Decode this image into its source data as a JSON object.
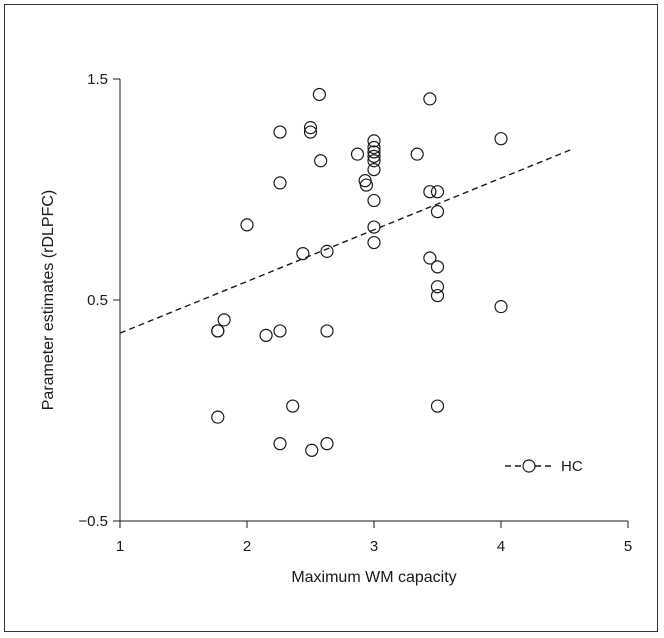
{
  "chart_data": {
    "type": "scatter",
    "title": "",
    "xlabel": "Maximum WM capacity",
    "ylabel": "Parameter estimates (rDLPFC)",
    "xlim": [
      1,
      5
    ],
    "ylim": [
      -0.5,
      1.5
    ],
    "xticks": [
      "1",
      "2",
      "3",
      "4",
      "5"
    ],
    "yticks": [
      "1.5",
      "0.5",
      "−0.5"
    ],
    "ytick_values": [
      1.5,
      0.5,
      -0.5
    ],
    "xtick_values": [
      1,
      2,
      3,
      4,
      5
    ],
    "grid": false,
    "legend": {
      "placement": "bottom-right",
      "entries": [
        "HC"
      ]
    },
    "series": [
      {
        "name": "HC",
        "marker": "open-circle",
        "x": [
          1.77,
          1.82,
          1.77,
          1.77,
          2.0,
          2.15,
          2.26,
          2.26,
          2.26,
          2.26,
          2.36,
          2.44,
          2.5,
          2.5,
          2.51,
          2.57,
          2.58,
          2.63,
          2.63,
          2.63,
          2.87,
          2.93,
          2.94,
          3.0,
          3.0,
          3.0,
          3.0,
          3.0,
          3.0,
          3.0,
          3.0,
          3.0,
          3.34,
          3.44,
          3.44,
          3.44,
          3.5,
          3.5,
          3.5,
          3.5,
          3.5,
          3.5,
          4.0,
          4.0
        ],
        "y": [
          0.36,
          0.41,
          0.36,
          -0.03,
          0.84,
          0.34,
          1.26,
          1.03,
          0.36,
          -0.15,
          0.02,
          0.71,
          1.28,
          1.26,
          -0.18,
          1.43,
          1.13,
          0.72,
          0.36,
          -0.15,
          1.16,
          1.04,
          1.02,
          1.22,
          1.19,
          1.17,
          1.15,
          1.13,
          1.09,
          0.95,
          0.83,
          0.76,
          1.16,
          1.41,
          0.99,
          0.69,
          0.99,
          0.9,
          0.65,
          0.56,
          0.52,
          0.02,
          1.23,
          0.47
        ]
      }
    ],
    "trendline": {
      "series": "HC",
      "style": "dashed",
      "x": [
        1,
        4.55
      ],
      "y": [
        0.35,
        1.18
      ]
    }
  }
}
